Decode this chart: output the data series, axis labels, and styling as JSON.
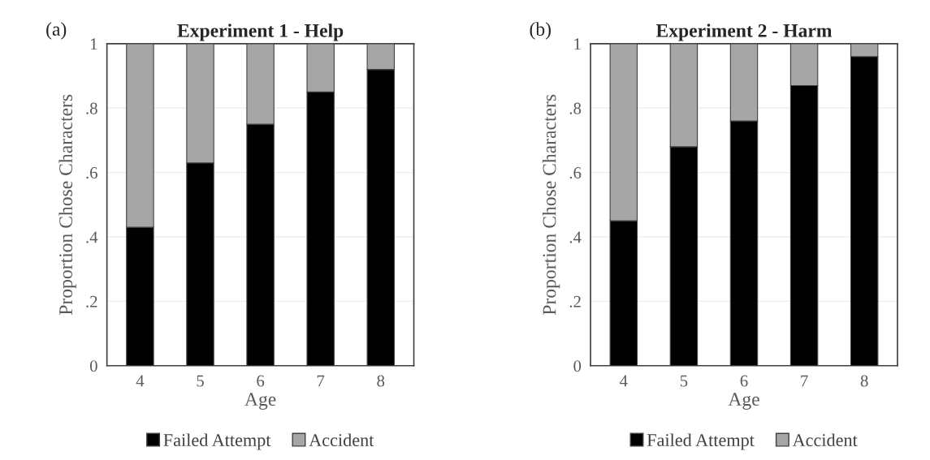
{
  "chart_data": [
    {
      "type": "bar",
      "title": "Experiment 1 - Help",
      "xlabel": "Age",
      "ylabel": "Proportion Chose Characters",
      "annotations": [
        "(a)"
      ],
      "categories": [
        "4",
        "5",
        "6",
        "7",
        "8"
      ],
      "stacked": true,
      "series": [
        {
          "name": "Failed Attempt",
          "color": "#000000",
          "values": [
            0.43,
            0.63,
            0.75,
            0.85,
            0.92
          ]
        },
        {
          "name": "Accident",
          "color": "#a6a6a6",
          "values": [
            0.57,
            0.37,
            0.25,
            0.15,
            0.08
          ]
        }
      ],
      "ylim": [
        0,
        1
      ],
      "yticks": [
        {
          "value": 0,
          "label": "0"
        },
        {
          "value": 0.2,
          "label": ".2"
        },
        {
          "value": 0.4,
          "label": ".4"
        },
        {
          "value": 0.6,
          "label": ".6"
        },
        {
          "value": 0.8,
          "label": ".8"
        },
        {
          "value": 1,
          "label": "1"
        }
      ],
      "grid": "y",
      "legend": "bottom"
    },
    {
      "type": "bar",
      "title": "Experiment 2 - Harm",
      "xlabel": "Age",
      "ylabel": "Proportion Chose Characters",
      "annotations": [
        "(b)"
      ],
      "categories": [
        "4",
        "5",
        "6",
        "7",
        "8"
      ],
      "stacked": true,
      "series": [
        {
          "name": "Failed Attempt",
          "color": "#000000",
          "values": [
            0.45,
            0.68,
            0.76,
            0.87,
            0.96
          ]
        },
        {
          "name": "Accident",
          "color": "#a6a6a6",
          "values": [
            0.55,
            0.32,
            0.24,
            0.13,
            0.04
          ]
        }
      ],
      "ylim": [
        0,
        1
      ],
      "yticks": [
        {
          "value": 0,
          "label": "0"
        },
        {
          "value": 0.2,
          "label": ".2"
        },
        {
          "value": 0.4,
          "label": ".4"
        },
        {
          "value": 0.6,
          "label": ".6"
        },
        {
          "value": 0.8,
          "label": ".8"
        },
        {
          "value": 1,
          "label": "1"
        }
      ],
      "grid": "y",
      "legend": "bottom"
    }
  ]
}
